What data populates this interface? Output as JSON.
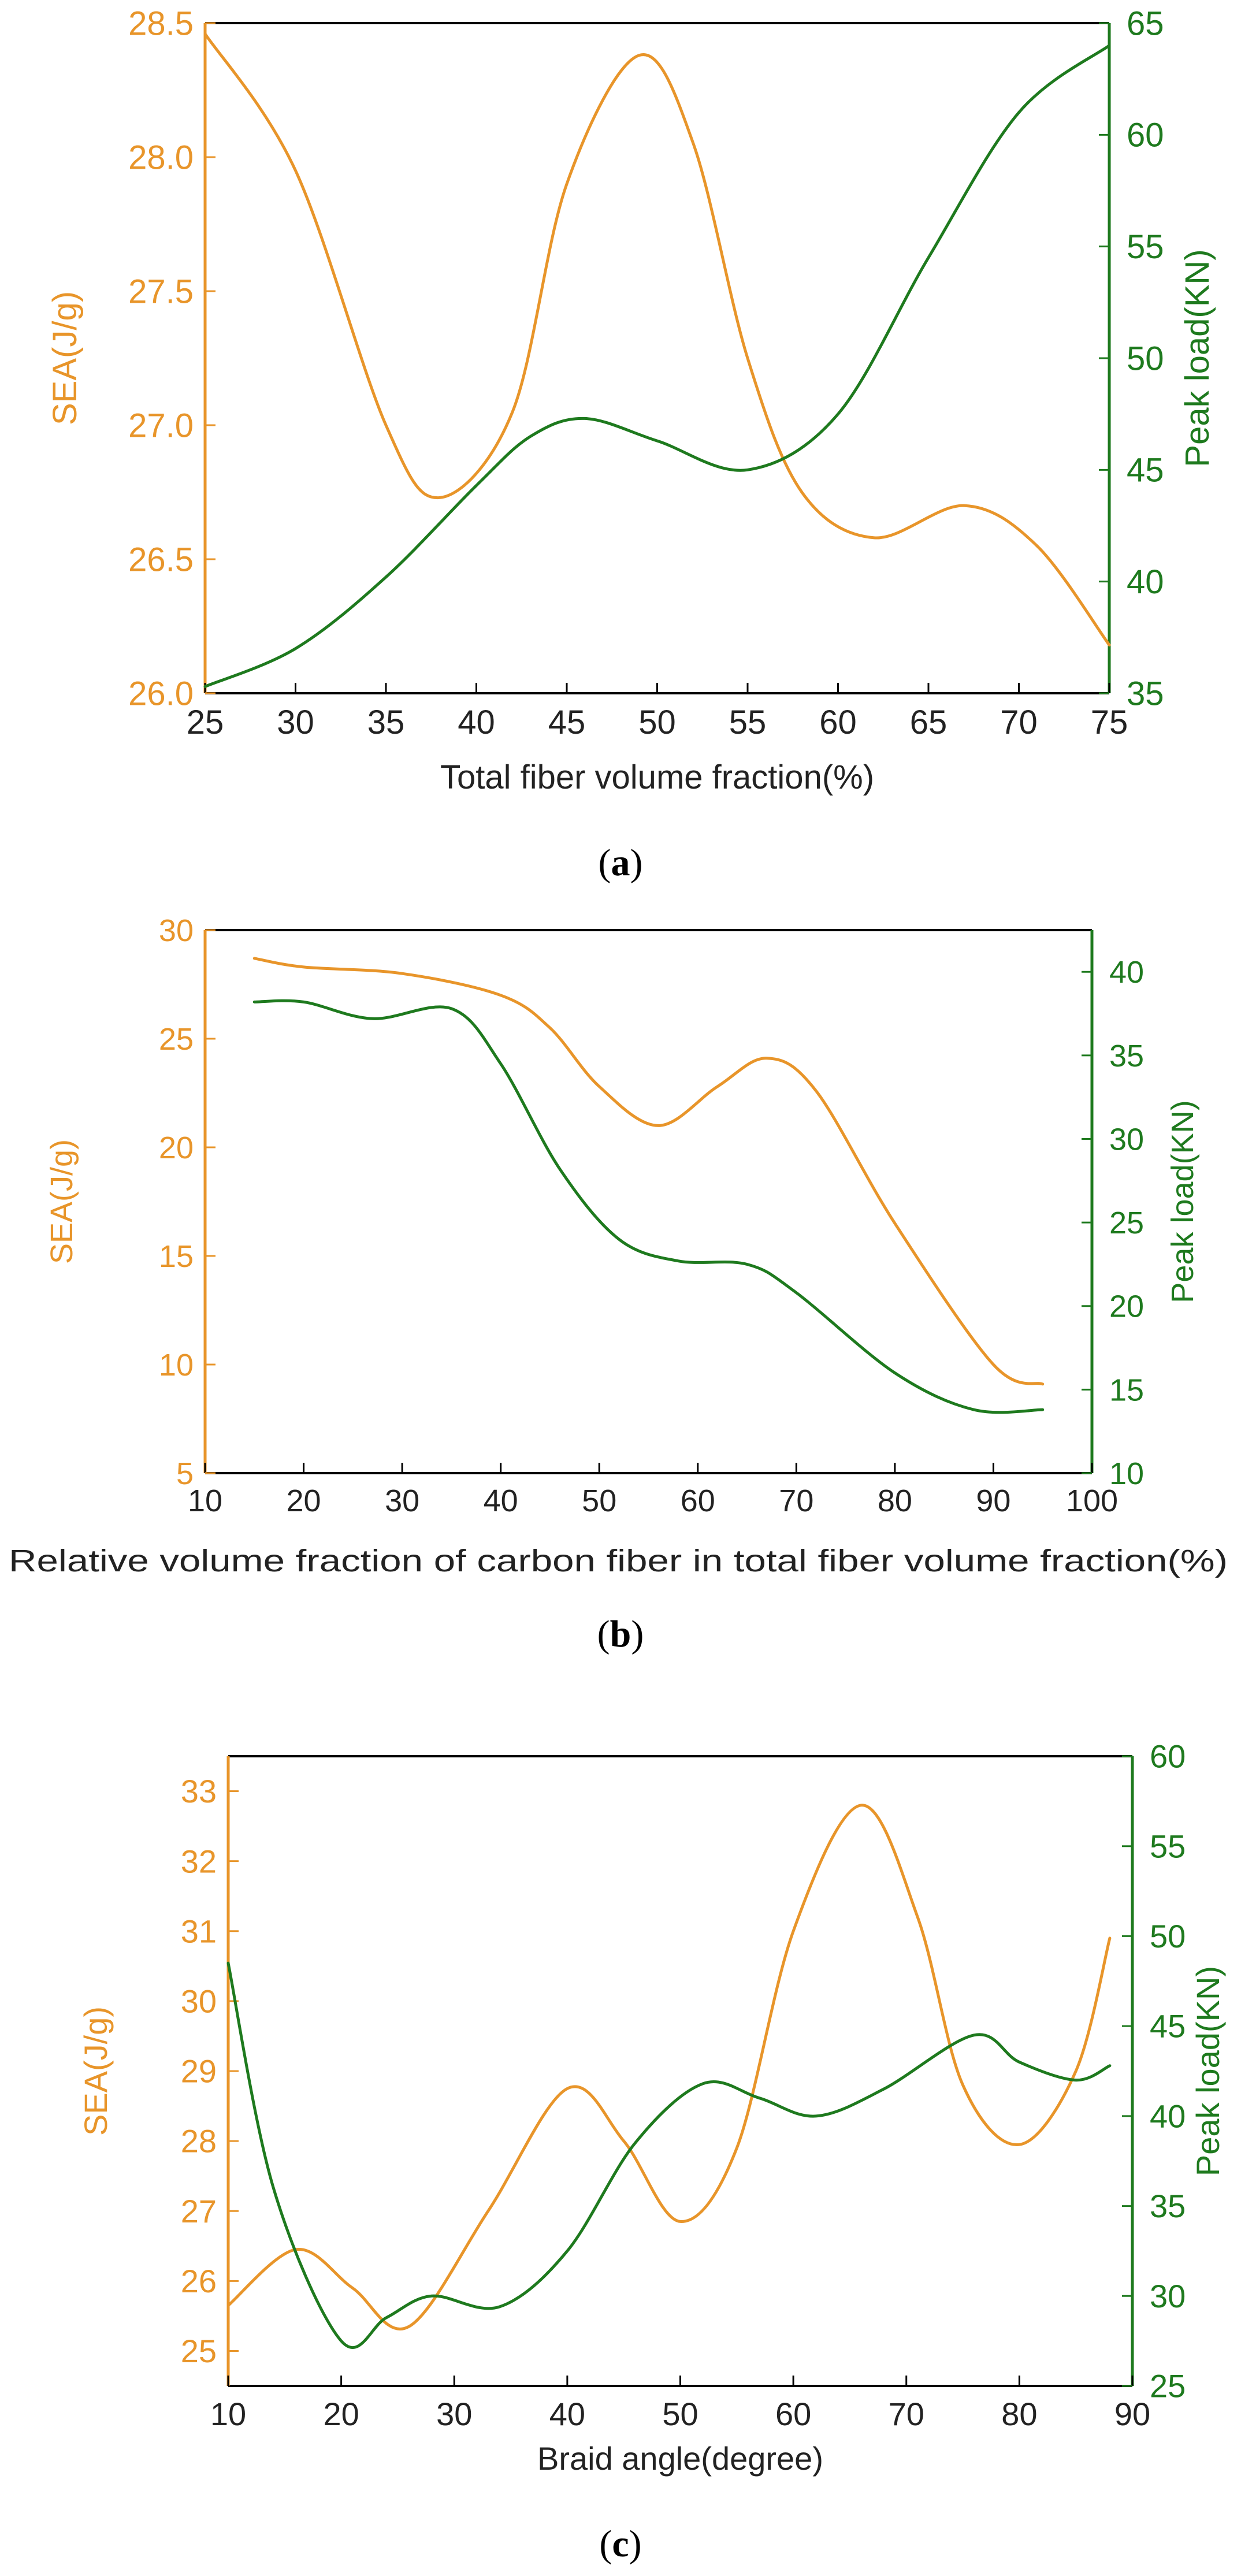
{
  "colors": {
    "sea": "#E8952A",
    "peak": "#1E7A1E",
    "axis": "#000000"
  },
  "panels": [
    {
      "caption_open": "(",
      "caption_letter": "a",
      "caption_close": ")"
    },
    {
      "caption_open": "(",
      "caption_letter": "b",
      "caption_close": ")"
    },
    {
      "caption_open": "(",
      "caption_letter": "c",
      "caption_close": ")"
    }
  ],
  "chart_data": [
    {
      "type": "line",
      "xlabel": "Total fiber volume fraction(%)",
      "ylabel": "SEA(J/g)",
      "ylabel_right": "Peak load(KN)",
      "xlim": [
        25,
        75
      ],
      "ylim": [
        26.0,
        28.5
      ],
      "ylim_right": [
        35,
        65
      ],
      "x_ticks": [
        "25",
        "30",
        "35",
        "40",
        "45",
        "50",
        "55",
        "60",
        "65",
        "70",
        "75"
      ],
      "y_ticks": [
        "26.0",
        "26.5",
        "27.0",
        "27.5",
        "28.0",
        "28.5"
      ],
      "y_ticks_right": [
        "35",
        "40",
        "45",
        "50",
        "55",
        "60",
        "65"
      ],
      "series": [
        {
          "name": "SEA(J/g)",
          "axis": "left",
          "x": [
            25,
            30,
            35,
            38,
            42,
            45,
            49,
            52,
            55,
            58,
            62,
            67,
            71,
            75
          ],
          "y": [
            28.46,
            27.95,
            27.0,
            26.73,
            27.05,
            27.9,
            28.38,
            28.05,
            27.25,
            26.75,
            26.58,
            26.7,
            26.55,
            26.18
          ]
        },
        {
          "name": "Peak load(KN)",
          "axis": "right",
          "x": [
            25,
            30,
            35,
            40,
            43,
            46,
            50,
            55,
            60,
            65,
            70,
            75
          ],
          "y": [
            35.3,
            37.0,
            40.2,
            44.3,
            46.5,
            47.3,
            46.3,
            45.0,
            47.5,
            54.5,
            61.0,
            64.0
          ]
        }
      ]
    },
    {
      "type": "line",
      "xlabel": "Relative volume fraction of carbon fiber in total fiber volume fraction(%)",
      "ylabel": "SEA(J/g)",
      "ylabel_right": "Peak load(KN)",
      "xlim": [
        10,
        100
      ],
      "ylim": [
        5,
        30
      ],
      "ylim_right": [
        10,
        42.5
      ],
      "x_ticks": [
        "10",
        "20",
        "30",
        "40",
        "50",
        "60",
        "70",
        "80",
        "90",
        "100"
      ],
      "y_ticks": [
        "5",
        "10",
        "15",
        "20",
        "25",
        "30"
      ],
      "y_ticks_right": [
        "10",
        "15",
        "20",
        "25",
        "30",
        "35",
        "40"
      ],
      "series": [
        {
          "name": "SEA(J/g)",
          "axis": "left",
          "x": [
            15,
            20,
            30,
            40,
            45,
            50,
            56,
            62,
            67,
            72,
            80,
            90,
            95
          ],
          "y": [
            28.7,
            28.3,
            28.0,
            27.0,
            25.5,
            22.8,
            21.0,
            22.8,
            24.1,
            22.6,
            16.5,
            10.0,
            9.1
          ]
        },
        {
          "name": "Peak load(KN)",
          "axis": "right",
          "x": [
            15,
            20,
            27,
            35,
            40,
            46,
            52,
            58,
            65,
            70,
            80,
            88,
            95
          ],
          "y": [
            38.2,
            38.2,
            37.2,
            37.8,
            34.5,
            28.2,
            24.0,
            22.7,
            22.5,
            20.8,
            16.0,
            13.8,
            13.8
          ]
        }
      ]
    },
    {
      "type": "line",
      "xlabel": "Braid angle(degree)",
      "ylabel": "SEA(J/g)",
      "ylabel_right": "Peak load(KN)",
      "xlim": [
        10,
        90
      ],
      "ylim": [
        24.5,
        33.5
      ],
      "ylim_right": [
        25,
        60
      ],
      "x_ticks": [
        "10",
        "20",
        "30",
        "40",
        "50",
        "60",
        "70",
        "80",
        "90"
      ],
      "y_ticks": [
        "25",
        "26",
        "27",
        "28",
        "29",
        "30",
        "31",
        "32",
        "33"
      ],
      "y_ticks_right": [
        "25",
        "30",
        "35",
        "40",
        "45",
        "50",
        "55",
        "60"
      ],
      "series": [
        {
          "name": "SEA(J/g)",
          "axis": "left",
          "x": [
            10,
            16,
            21,
            26,
            33,
            40,
            45,
            50,
            55,
            60,
            66,
            71,
            75,
            80,
            85,
            88
          ],
          "y": [
            25.65,
            26.45,
            25.9,
            25.35,
            27.0,
            28.75,
            28.0,
            26.85,
            27.9,
            31.0,
            32.8,
            31.2,
            28.8,
            27.95,
            29.0,
            30.9
          ]
        },
        {
          "name": "Peak load(KN)",
          "axis": "right",
          "x": [
            10,
            14,
            20,
            24,
            28,
            34,
            40,
            46,
            52,
            57,
            62,
            68,
            76,
            80,
            85,
            88
          ],
          "y": [
            48.5,
            36.0,
            27.5,
            28.8,
            30.0,
            29.4,
            32.5,
            38.5,
            41.8,
            41.0,
            40.0,
            41.5,
            44.5,
            43.0,
            42.0,
            42.8
          ]
        }
      ]
    }
  ]
}
